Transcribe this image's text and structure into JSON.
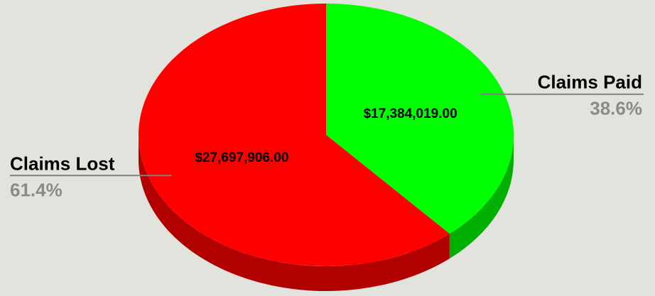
{
  "chart_data": {
    "type": "pie",
    "style": "3d",
    "title": "",
    "legend": "none",
    "slices": [
      {
        "label": "Claims Paid",
        "value": 17384019.0,
        "value_label": "$17,384,019.00",
        "percent": 38.6,
        "percent_label": "38.6%",
        "color": "#00ff00",
        "side_color": "#00b000"
      },
      {
        "label": "Claims Lost",
        "value": 27697906.0,
        "value_label": "$27,697,906.00",
        "percent": 61.4,
        "percent_label": "61.4%",
        "color": "#ff0000",
        "side_color": "#b00000"
      }
    ]
  },
  "colors": {
    "background": "#e3e3de",
    "percent_text": "#8a8a8a",
    "leader_line": "#808080"
  }
}
